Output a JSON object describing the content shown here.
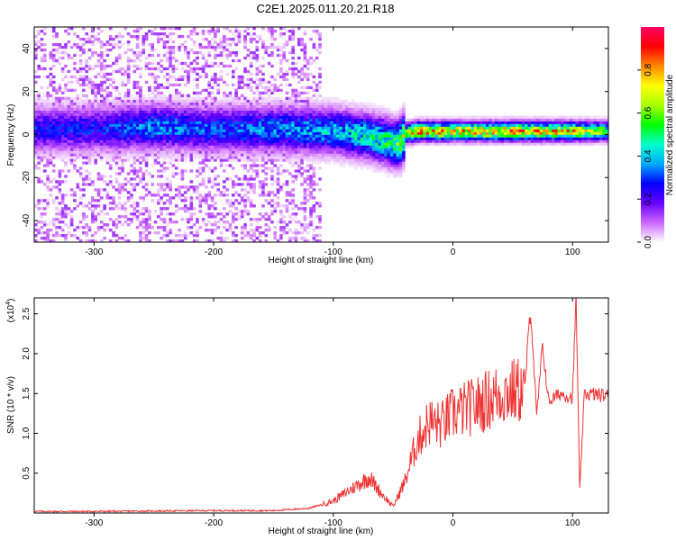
{
  "page_title": "C2E1.2025.011.20.21.R18",
  "chart_data": [
    {
      "type": "heatmap",
      "xlabel": "Height of straight line (km)",
      "ylabel": "Frequency (Hz)",
      "xlim": [
        -350,
        130
      ],
      "ylim": [
        -50,
        50
      ],
      "xticks": [
        -300,
        -200,
        -100,
        0,
        100
      ],
      "yticks": [
        -40,
        -20,
        0,
        20,
        40
      ],
      "colorbar": {
        "label": "Normalized spectral amplitude",
        "range": [
          0,
          1
        ],
        "ticks": [
          0.0,
          0.2,
          0.4,
          0.6,
          0.8
        ],
        "colors": [
          "#ffffff",
          "#cc66ff",
          "#6600ff",
          "#0000ff",
          "#00aaff",
          "#00ffcc",
          "#00ff00",
          "#aaff00",
          "#ffff00",
          "#ff8800",
          "#ff0000",
          "#ff0066"
        ]
      },
      "ridge": {
        "x": [
          -350,
          -300,
          -250,
          -200,
          -150,
          -100,
          -75,
          -60,
          -50,
          -45,
          -40,
          -30,
          0,
          50,
          100,
          130
        ],
        "center": [
          2,
          2,
          3,
          2,
          2,
          1,
          -1,
          -3,
          -5,
          -4,
          0,
          1,
          1,
          1,
          1,
          1
        ],
        "peak": [
          0.3,
          0.3,
          0.4,
          0.35,
          0.4,
          0.45,
          0.5,
          0.55,
          0.6,
          0.7,
          0.8,
          0.9,
          0.85,
          0.9,
          0.85,
          0.6
        ]
      }
    },
    {
      "type": "line",
      "xlabel": "Height of straight line (km)",
      "ylabel": "SNR (10 * v/v)",
      "scale_note": "(x10",
      "scale_exp": "4",
      "scale_close": ")",
      "xlim": [
        -350,
        130
      ],
      "ylim": [
        0,
        2.7
      ],
      "xticks": [
        -300,
        -200,
        -100,
        0,
        100
      ],
      "yticks": [
        0.5,
        1.0,
        1.5,
        2.0,
        2.5
      ],
      "line_color": "#ee3333",
      "series": [
        {
          "x": [
            -350,
            -300,
            -200,
            -150,
            -120,
            -100,
            -85,
            -70,
            -60,
            -50,
            -40,
            -30,
            -20,
            -10,
            0,
            20,
            40,
            60,
            65,
            70,
            75,
            80,
            90,
            100,
            103,
            106,
            110,
            130
          ],
          "y": [
            0.02,
            0.02,
            0.03,
            0.03,
            0.06,
            0.15,
            0.3,
            0.45,
            0.25,
            0.08,
            0.4,
            0.9,
            1.15,
            1.1,
            1.25,
            1.35,
            1.5,
            1.55,
            2.6,
            1.2,
            2.1,
            1.4,
            1.5,
            1.45,
            2.7,
            0.3,
            1.5,
            1.47
          ]
        }
      ]
    }
  ]
}
